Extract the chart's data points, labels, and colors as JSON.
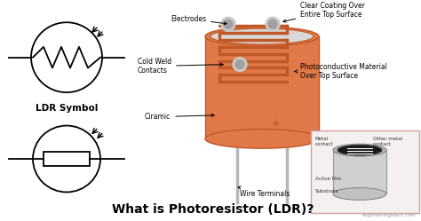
{
  "bg_color": "#ffffff",
  "title": "What is Photoresistor (LDR)?",
  "title_fontsize": 10,
  "watermark": "engineeringlearn.com",
  "annotations": {
    "electrodes": "Electrodes",
    "clear_coating": "Clear Coating Over\nEntire Top Surface",
    "cold_weld": "Cold Weld\nContacts",
    "photoconductive": "Photoconductive Material\nOver Top Surface",
    "ciramic": "Ciramic",
    "wire_terminals": "Wire Terminals",
    "ldr_symbol": "LDR Symbol"
  },
  "ldr_body_color": "#E07848",
  "ldr_body_edge": "#C05828",
  "ldr_side_color": "#D06838",
  "ldr_leg_color": "#B8B8B8",
  "ldr_top_color": "#D8D8D8",
  "coil_color": "#C05828",
  "contact_color": "#A0A0A0",
  "inset_bg": "#F5F0F0",
  "inset_border": "#D0A0A0"
}
